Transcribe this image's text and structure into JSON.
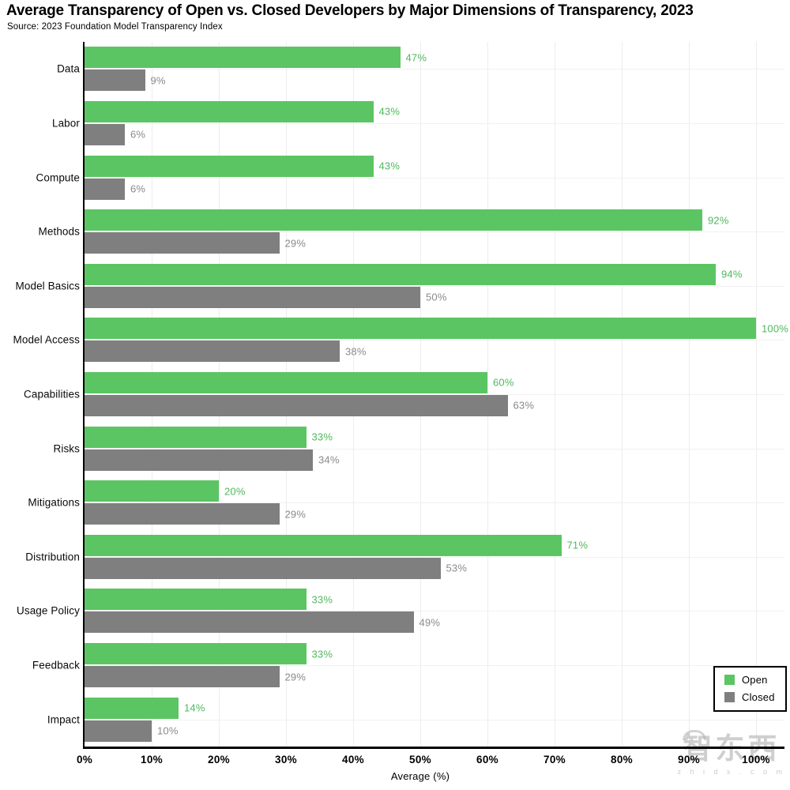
{
  "title": "Average Transparency of Open vs. Closed Developers by Major Dimensions of Transparency, 2023",
  "source": "Source: 2023 Foundation Model Transparency Index",
  "chart_data": {
    "type": "bar",
    "orientation": "horizontal",
    "title": "Average Transparency of Open vs. Closed Developers by Major Dimensions of Transparency, 2023",
    "subtitle": "Source: 2023 Foundation Model Transparency Index",
    "categories": [
      "Data",
      "Labor",
      "Compute",
      "Methods",
      "Model Basics",
      "Model Access",
      "Capabilities",
      "Risks",
      "Mitigations",
      "Distribution",
      "Usage Policy",
      "Feedback",
      "Impact"
    ],
    "series": [
      {
        "name": "Open",
        "color": "#5bc563",
        "label_color": "#4eb95c",
        "values": [
          47,
          43,
          43,
          92,
          94,
          100,
          60,
          33,
          20,
          71,
          33,
          33,
          14
        ]
      },
      {
        "name": "Closed",
        "color": "#7f7f7f",
        "label_color": "#8a8a8a",
        "values": [
          9,
          6,
          6,
          29,
          50,
          38,
          63,
          34,
          29,
          53,
          49,
          29,
          10
        ]
      }
    ],
    "value_suffix": "%",
    "xlabel": "Average (%)",
    "ylabel": "",
    "xlim": [
      0,
      100
    ],
    "x_ticks": [
      "0%",
      "10%",
      "20%",
      "30%",
      "40%",
      "50%",
      "60%",
      "70%",
      "80%",
      "90%",
      "100%"
    ],
    "grid": true,
    "legend_position": "lower right"
  },
  "watermark": {
    "text": "智东西",
    "subtext": "z h i d x . c o m"
  }
}
